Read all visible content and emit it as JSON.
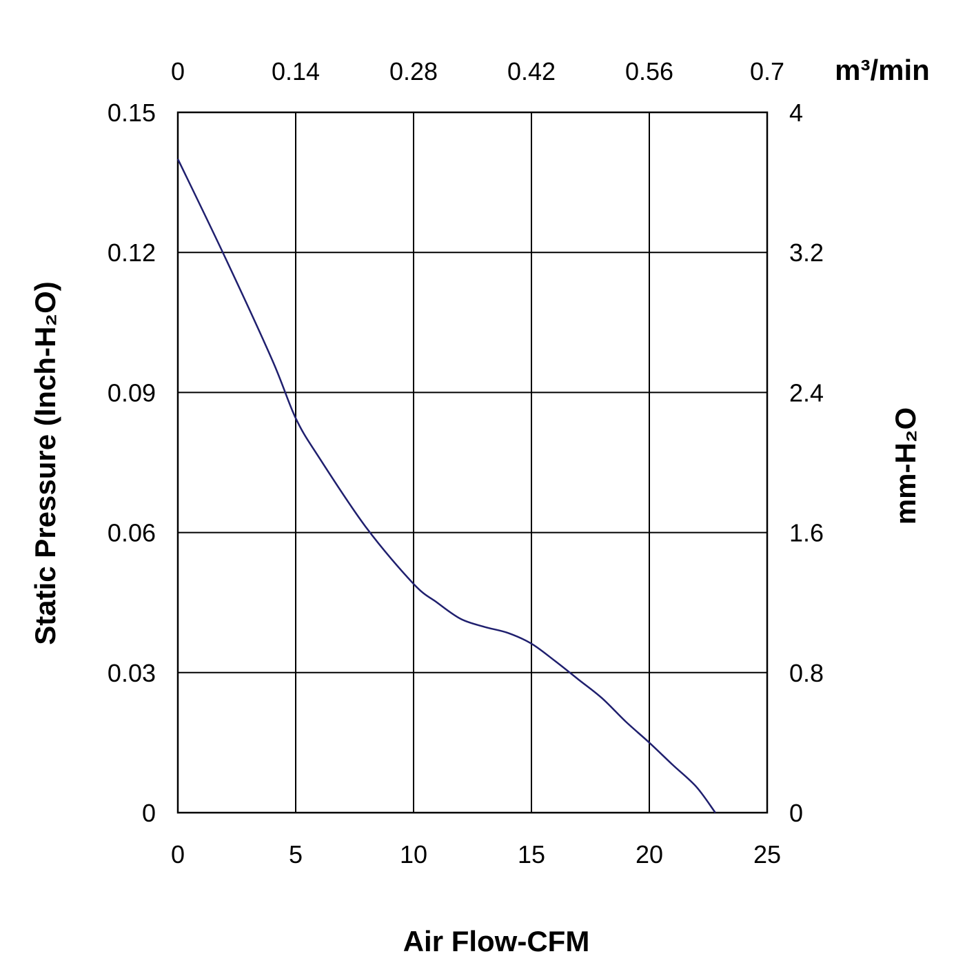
{
  "chart_data": {
    "type": "line",
    "title": "",
    "xlabel": "Air Flow-CFM",
    "ylabel_left": "Static Pressure (Inch-H₂O)",
    "ylabel_right": "mm-H₂O",
    "xlabel_top": "m³/min",
    "xlim": [
      0,
      25
    ],
    "ylim": [
      0,
      0.15
    ],
    "xlim_top": [
      0,
      0.7
    ],
    "ylim_right": [
      0,
      4
    ],
    "x_ticks": [
      "0",
      "5",
      "10",
      "15",
      "20",
      "25"
    ],
    "x_ticks_top": [
      "0",
      "0.14",
      "0.28",
      "0.42",
      "0.56",
      "0.7"
    ],
    "y_ticks_left": [
      "0",
      "0.03",
      "0.06",
      "0.09",
      "0.12",
      "0.15"
    ],
    "y_ticks_right": [
      "0",
      "0.8",
      "1.6",
      "2.4",
      "3.2",
      "4"
    ],
    "grid": true,
    "line_color": "#1f1f6e",
    "series": [
      {
        "x": [
          0,
          2,
          4,
          5,
          6,
          8,
          10,
          11,
          12,
          13,
          14,
          15,
          16,
          17,
          18,
          19,
          20,
          21,
          22,
          22.8
        ],
        "y": [
          0.14,
          0.119,
          0.097,
          0.0845,
          0.076,
          0.061,
          0.049,
          0.045,
          0.0415,
          0.0398,
          0.0385,
          0.0362,
          0.0325,
          0.0285,
          0.0245,
          0.0195,
          0.015,
          0.0102,
          0.0055,
          0.0
        ]
      }
    ]
  }
}
